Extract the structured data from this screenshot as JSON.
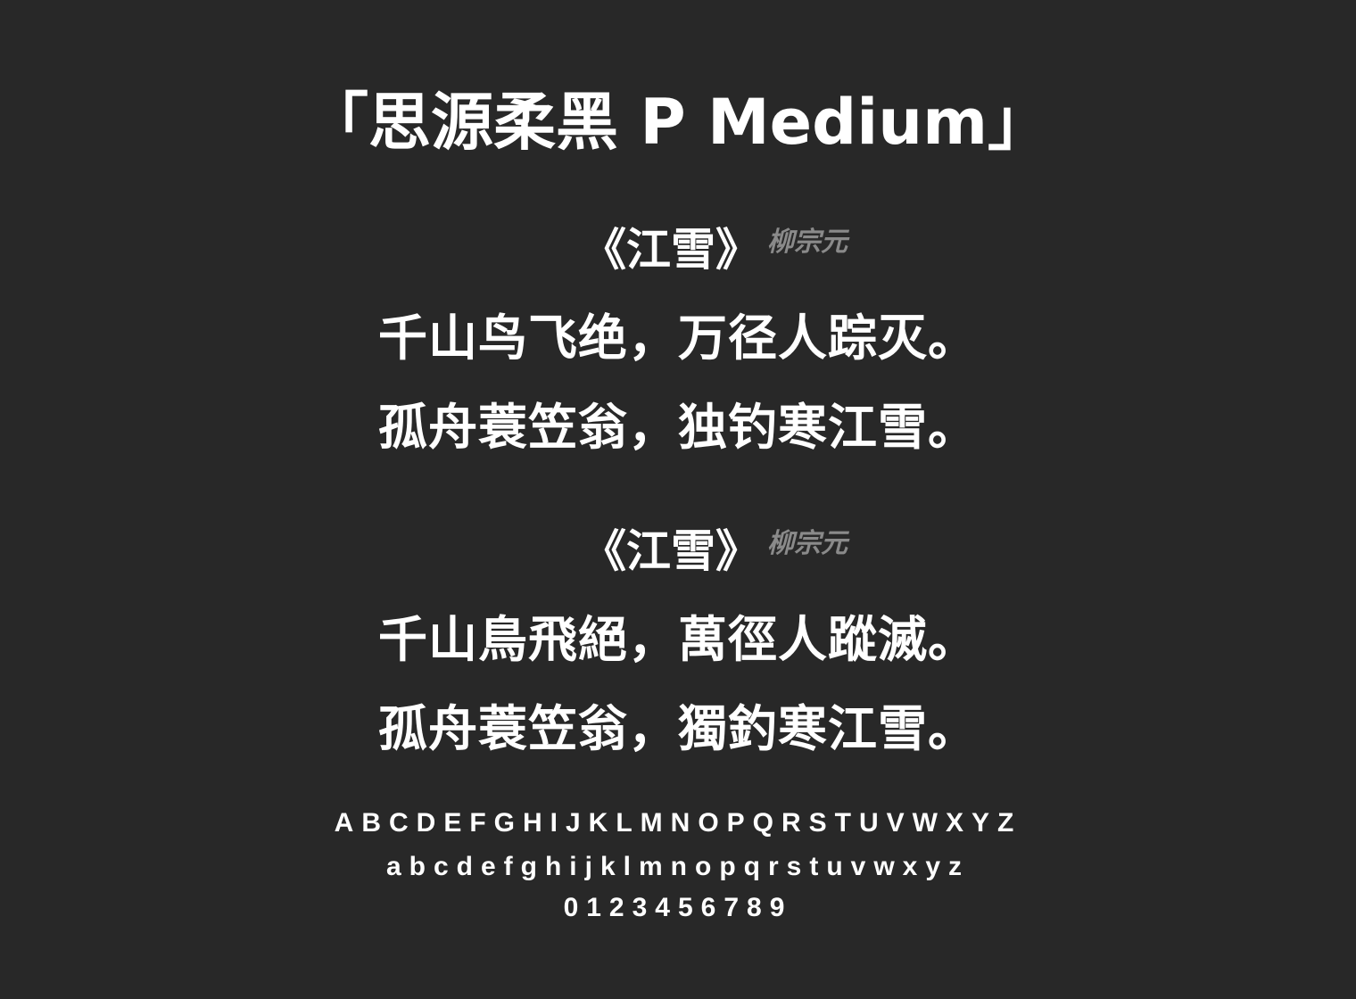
{
  "font_name": "「思源柔黑 P Medium」",
  "poems": [
    {
      "title": "《江雪》",
      "author": "柳宗元",
      "lines": [
        "千山鸟飞绝，万径人踪灭。",
        "孤舟蓑笠翁，独钓寒江雪。"
      ]
    },
    {
      "title": "《江雪》",
      "author": "柳宗元",
      "lines": [
        "千山鳥飛絕，萬徑人蹤滅。",
        "孤舟蓑笠翁，獨釣寒江雪。"
      ]
    }
  ],
  "glyphs": {
    "uppercase": "ABCDEFGHIJKLMNOPQRSTUVWXYZ",
    "lowercase": "abcdefghijklmnopqrstuvwxyz",
    "digits": "0123456789"
  },
  "colors": {
    "background": "#282828",
    "text": "#ffffff",
    "author": "#8a8a8a"
  }
}
